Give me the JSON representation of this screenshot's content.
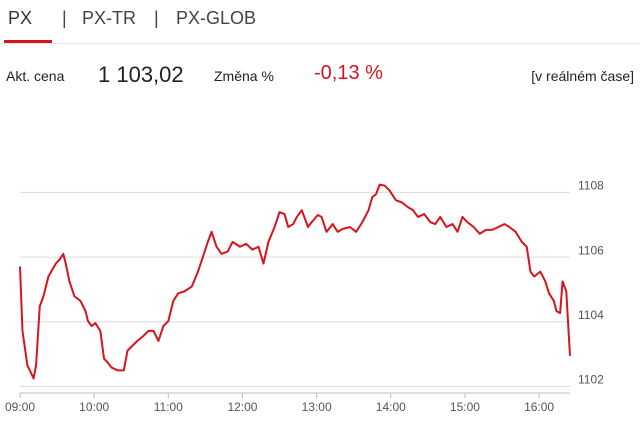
{
  "tabs": [
    "PX",
    "PX-TR",
    "PX-GLOB"
  ],
  "active_tab": 0,
  "quote": {
    "price_label": "Akt. cena",
    "price": "1 103,02",
    "change_label": "Změna %",
    "change": "-0,13 %",
    "realtime": "[v reálném čase]"
  },
  "chart_data": {
    "type": "line",
    "color": "#d7141e",
    "grid": true,
    "x": [
      "09:00",
      "09:02",
      "09:06",
      "09:11",
      "09:13",
      "09:16",
      "09:19",
      "09:23",
      "09:26",
      "09:29",
      "09:32",
      "09:35",
      "09:37",
      "09:40",
      "09:44",
      "09:49",
      "09:53",
      "09:55",
      "09:58",
      "10:01",
      "10:05",
      "10:08",
      "10:11",
      "10:14",
      "10:19",
      "10:24",
      "10:27",
      "10:31",
      "10:35",
      "10:40",
      "10:44",
      "10:48",
      "10:52",
      "10:56",
      "11:00",
      "11:04",
      "11:08",
      "11:13",
      "11:19",
      "11:24",
      "11:28",
      "11:32",
      "11:35",
      "11:39",
      "11:43",
      "11:48",
      "11:52",
      "11:58",
      "12:03",
      "12:08",
      "12:13",
      "12:17",
      "12:21",
      "12:26",
      "12:30",
      "12:34",
      "12:37",
      "12:41",
      "12:44",
      "12:48",
      "12:53",
      "12:56",
      "13:01",
      "13:04",
      "13:08",
      "13:13",
      "13:17",
      "13:21",
      "13:27",
      "13:32",
      "13:37",
      "13:42",
      "13:45",
      "13:48",
      "13:51",
      "13:55",
      "13:59",
      "14:04",
      "14:09",
      "14:14",
      "14:18",
      "14:22",
      "14:27",
      "14:32",
      "14:36",
      "14:40",
      "14:45",
      "14:50",
      "14:54",
      "14:58",
      "15:02",
      "15:07",
      "15:12",
      "15:17",
      "15:22",
      "15:27",
      "15:32",
      "15:36",
      "15:41",
      "15:46",
      "15:50",
      "15:53",
      "15:56",
      "16:01",
      "16:05",
      "16:08",
      "16:12",
      "16:14",
      "16:17",
      "16:19",
      "16:22",
      "16:25"
    ],
    "values": [
      1105.71,
      1103.72,
      1102.65,
      1102.25,
      1102.65,
      1104.48,
      1104.79,
      1105.4,
      1105.6,
      1105.8,
      1105.92,
      1106.1,
      1105.8,
      1105.25,
      1104.79,
      1104.64,
      1104.33,
      1104.02,
      1103.87,
      1103.96,
      1103.72,
      1102.86,
      1102.74,
      1102.59,
      1102.5,
      1102.5,
      1103.11,
      1103.26,
      1103.41,
      1103.57,
      1103.72,
      1103.72,
      1103.41,
      1103.87,
      1104.02,
      1104.64,
      1104.88,
      1104.94,
      1105.09,
      1105.55,
      1106.01,
      1106.47,
      1106.78,
      1106.32,
      1106.1,
      1106.17,
      1106.47,
      1106.32,
      1106.41,
      1106.23,
      1106.32,
      1105.8,
      1106.47,
      1106.93,
      1107.39,
      1107.33,
      1106.93,
      1107.02,
      1107.24,
      1107.45,
      1106.93,
      1107.08,
      1107.3,
      1107.24,
      1106.78,
      1107.02,
      1106.78,
      1106.87,
      1106.93,
      1106.78,
      1107.08,
      1107.45,
      1107.85,
      1107.94,
      1108.24,
      1108.21,
      1108.06,
      1107.76,
      1107.69,
      1107.54,
      1107.45,
      1107.24,
      1107.33,
      1107.08,
      1107.02,
      1107.24,
      1106.93,
      1107.02,
      1106.78,
      1107.24,
      1107.08,
      1106.93,
      1106.72,
      1106.84,
      1106.84,
      1106.93,
      1107.02,
      1106.93,
      1106.78,
      1106.47,
      1106.32,
      1105.55,
      1105.4,
      1105.55,
      1105.25,
      1104.88,
      1104.64,
      1104.33,
      1104.27,
      1105.25,
      1104.94,
      1102.95
    ],
    "xlim": [
      "09:00",
      "16:25"
    ],
    "xticks": [
      "09:00",
      "10:00",
      "11:00",
      "12:00",
      "13:00",
      "14:00",
      "15:00",
      "16:00"
    ],
    "ylim": [
      1101.8,
      1109
    ],
    "yticks": [
      1102,
      1104,
      1106,
      1108
    ]
  }
}
